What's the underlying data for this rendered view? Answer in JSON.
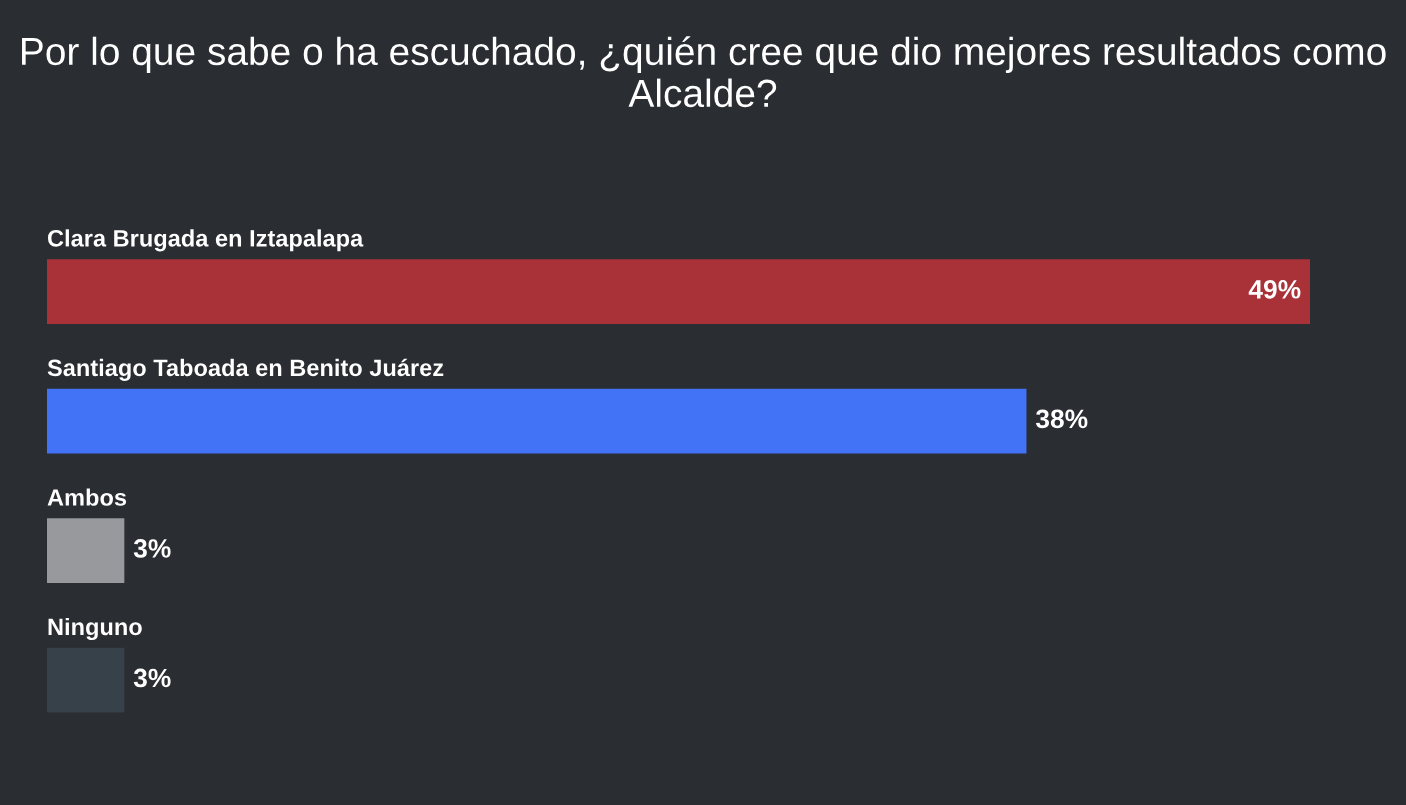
{
  "chart_data": {
    "type": "bar",
    "orientation": "horizontal",
    "title": "Por lo que sabe o ha escuchado, ¿quién cree que dio mejores resultados como Alcalde?",
    "categories": [
      "Clara Brugada en Iztapalapa",
      "Santiago Taboada en Benito Juárez",
      "Ambos",
      "Ninguno"
    ],
    "values": [
      49,
      38,
      3,
      3
    ],
    "colors": [
      "#a93239",
      "#4272f5",
      "#97999c",
      "#37414a"
    ],
    "value_labels": [
      "49%",
      "38%",
      "3%",
      "3%"
    ],
    "legend": false,
    "tick_labels": false
  }
}
